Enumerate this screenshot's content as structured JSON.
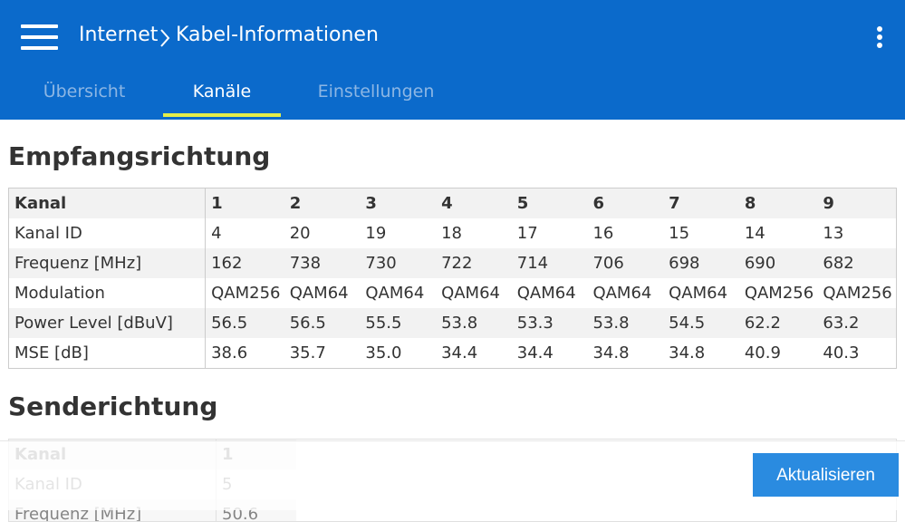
{
  "header": {
    "breadcrumb": [
      "Internet",
      "Kabel-Informationen"
    ]
  },
  "tabs": {
    "items": [
      "Übersicht",
      "Kanäle",
      "Einstellungen"
    ],
    "active": 1
  },
  "downstream": {
    "title": "Empfangsrichtung",
    "table": {
      "header": [
        "Kanal",
        "1",
        "2",
        "3",
        "4",
        "5",
        "6",
        "7",
        "8",
        "9"
      ],
      "rows": [
        [
          "Kanal ID",
          "4",
          "20",
          "19",
          "18",
          "17",
          "16",
          "15",
          "14",
          "13"
        ],
        [
          "Frequenz [MHz]",
          "162",
          "738",
          "730",
          "722",
          "714",
          "706",
          "698",
          "690",
          "682"
        ],
        [
          "Modulation",
          "QAM256",
          "QAM64",
          "QAM64",
          "QAM64",
          "QAM64",
          "QAM64",
          "QAM64",
          "QAM256",
          "QAM256"
        ],
        [
          "Power Level [dBuV]",
          "56.5",
          "56.5",
          "55.5",
          "53.8",
          "53.3",
          "53.8",
          "54.5",
          "62.2",
          "63.2"
        ],
        [
          "MSE [dB]",
          "38.6",
          "35.7",
          "35.0",
          "34.4",
          "34.4",
          "34.8",
          "34.8",
          "40.9",
          "40.3"
        ]
      ]
    }
  },
  "upstream": {
    "title": "Senderichtung",
    "table": {
      "header": [
        "Kanal",
        "1"
      ],
      "rows": [
        [
          "Kanal ID",
          "5"
        ],
        [
          "Frequenz [MHz]",
          "50.6"
        ]
      ]
    }
  },
  "button": "Aktualisieren"
}
